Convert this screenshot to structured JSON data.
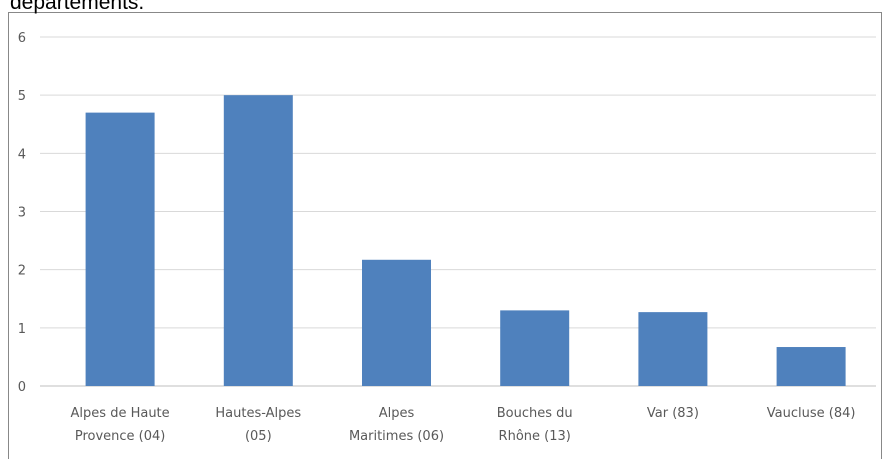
{
  "chart_data": {
    "type": "bar",
    "title": "départements.",
    "categories": [
      [
        "Alpes de Haute",
        "Provence (04)"
      ],
      [
        "Hautes-Alpes",
        "(05)"
      ],
      [
        "Alpes",
        "Maritimes (06)"
      ],
      [
        "Bouches du",
        "Rhône (13)"
      ],
      [
        "Var (83)"
      ],
      [
        "Vaucluse (84)"
      ]
    ],
    "values": [
      4.7,
      5.0,
      2.17,
      1.3,
      1.27,
      0.67
    ],
    "color": "#4f81bd",
    "ylim": [
      0,
      6
    ],
    "yticks": [
      0,
      1,
      2,
      3,
      4,
      5,
      6
    ],
    "grid": true
  }
}
